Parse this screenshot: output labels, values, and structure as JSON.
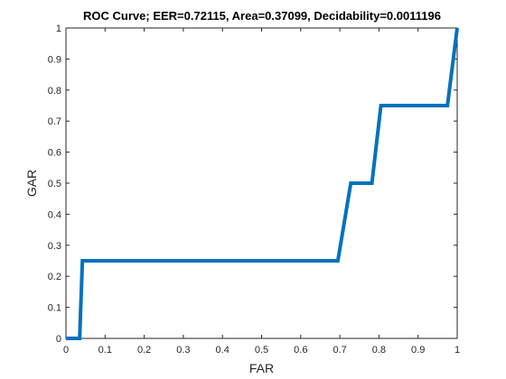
{
  "chart_data": {
    "type": "line",
    "title": "ROC Curve;   EER=0.72115,   Area=0.37099,   Decidability=0.0011196",
    "xlabel": "FAR",
    "ylabel": "GAR",
    "xlim": [
      0,
      1
    ],
    "ylim": [
      0,
      1
    ],
    "grid": false,
    "x_ticks": [
      "0",
      "0.1",
      "0.2",
      "0.3",
      "0.4",
      "0.5",
      "0.6",
      "0.7",
      "0.8",
      "0.9",
      "1"
    ],
    "y_ticks": [
      "0",
      "0.1",
      "0.2",
      "0.3",
      "0.4",
      "0.5",
      "0.6",
      "0.7",
      "0.8",
      "0.9",
      "1"
    ],
    "series": [
      {
        "color": "#0072bd",
        "x": [
          0,
          0.035,
          0.042,
          0.695,
          0.728,
          0.782,
          0.805,
          0.975,
          1.0
        ],
        "y": [
          0,
          0,
          0.25,
          0.25,
          0.5,
          0.5,
          0.75,
          0.75,
          1.0
        ]
      }
    ]
  }
}
